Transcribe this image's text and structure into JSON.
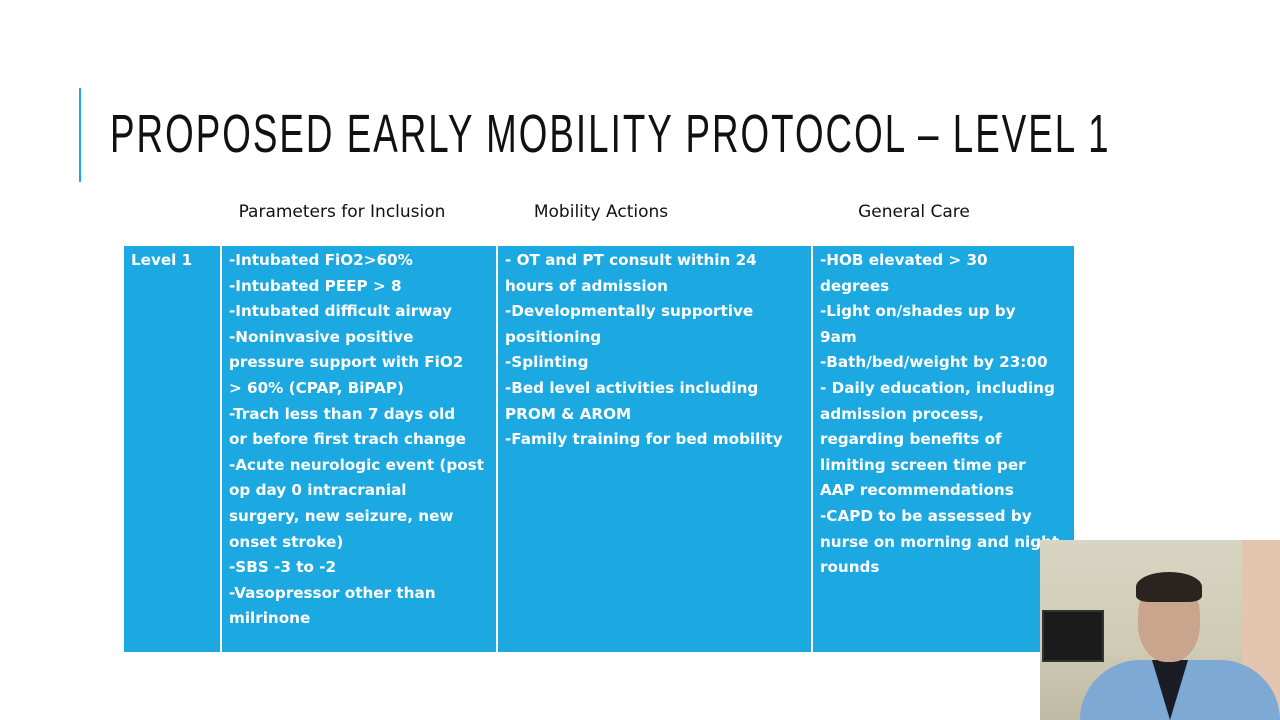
{
  "slide": {
    "title": "PROPOSED EARLY MOBILITY PROTOCOL – LEVEL 1",
    "accent_color": "#1ca9e2",
    "column_headers": [
      "Parameters for Inclusion",
      "Mobility Actions",
      "General Care"
    ],
    "table": {
      "level_label": "Level 1",
      "cell_color": "#1ca9e2",
      "parameters": [
        "-Intubated FiO2>60%",
        "-Intubated PEEP > 8",
        "-Intubated difficult airway",
        "-Noninvasive positive",
        "pressure support with FiO2",
        "> 60% (CPAP, BiPAP)",
        "-Trach less than 7 days old",
        "or before first trach change",
        "-Acute neurologic event (post",
        "op day 0 intracranial",
        "surgery, new seizure, new",
        "onset stroke)",
        "-SBS -3 to -2",
        "-Vasopressor other than",
        "milrinone"
      ],
      "mobility_actions": [
        "- OT and PT consult within 24",
        "hours of admission",
        "-Developmentally supportive",
        "positioning",
        "-Splinting",
        "-Bed level activities including",
        "PROM & AROM",
        "-Family training for bed mobility"
      ],
      "general_care": [
        "-HOB elevated > 30",
        "degrees",
        "-Light on/shades up by",
        "9am",
        "-Bath/bed/weight by 23:00",
        "- Daily education, including",
        "admission process,",
        "regarding benefits of",
        "limiting screen time per",
        "AAP recommendations",
        "-CAPD to be assessed by",
        "nurse on morning and night",
        "rounds"
      ]
    }
  }
}
